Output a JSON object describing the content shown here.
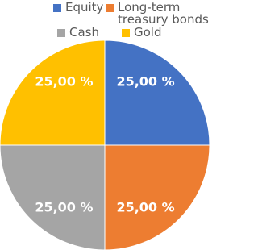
{
  "chart_data": {
    "type": "pie",
    "categories": [
      "Equity",
      "Long-term treasury bonds",
      "Cash",
      "Gold"
    ],
    "values": [
      25,
      25,
      25,
      25
    ],
    "value_labels": [
      "25,00 %",
      "25,00 %",
      "25,00 %",
      "25,00 %"
    ],
    "colors": [
      "#4472c4",
      "#ed7d31",
      "#a5a5a5",
      "#ffc000"
    ],
    "legend": "top"
  }
}
